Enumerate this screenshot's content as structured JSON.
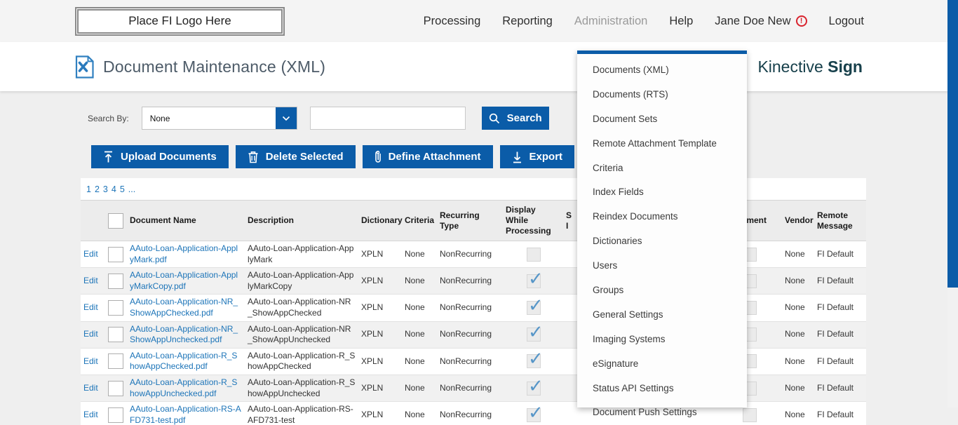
{
  "nav": {
    "logo_text": "Place FI Logo Here",
    "items": {
      "processing": "Processing",
      "reporting": "Reporting",
      "administration": "Administration",
      "help": "Help"
    },
    "user_name": "Jane Doe New",
    "user_warning_icon": "alert-circle",
    "logout": "Logout"
  },
  "header": {
    "title": "Document Maintenance (XML)",
    "title_icon": "xml-document",
    "brand_name": "Kinective",
    "brand_product": "Sign"
  },
  "search": {
    "label": "Search By:",
    "selected_option": "None",
    "input_value": "",
    "button_label": "Search",
    "button_icon": "magnifier"
  },
  "toolbar": {
    "upload_label": "Upload Documents",
    "upload_icon": "arrow-up-from-bar",
    "delete_label": "Delete Selected",
    "delete_icon": "trash",
    "attach_label": "Define Attachment",
    "attach_icon": "paperclip",
    "export_label": "Export",
    "export_icon": "arrow-down-to-bar",
    "partial_button_icon": "document-download"
  },
  "pagination": {
    "pages": [
      "1",
      "2",
      "3",
      "4",
      "5",
      "..."
    ]
  },
  "table": {
    "headers": {
      "document_name": "Document Name",
      "description": "Description",
      "dictionary": "Dictionary",
      "criteria": "Criteria",
      "recurring_type": "Recurring Type",
      "display_while_processing": "Display While Processing",
      "sign_line1": "S",
      "sign_line2": "I",
      "attachment": "Attachment",
      "vendor": "Vendor",
      "remote_message": "Remote Message"
    },
    "edit_label": "Edit",
    "rows": [
      {
        "name": "AAuto-Loan-Application-ApplyMark.pdf",
        "description": "AAuto-Loan-Application-ApplyMark",
        "dictionary": "XPLN",
        "criteria": "None",
        "recurring_type": "NonRecurring",
        "display_while_processing": false,
        "vendor": "None",
        "remote_message": "FI Default"
      },
      {
        "name": "AAuto-Loan-Application-ApplyMarkCopy.pdf",
        "description": "AAuto-Loan-Application-ApplyMarkCopy",
        "dictionary": "XPLN",
        "criteria": "None",
        "recurring_type": "NonRecurring",
        "display_while_processing": true,
        "vendor": "None",
        "remote_message": "FI Default"
      },
      {
        "name": "AAuto-Loan-Application-NR_ShowAppChecked.pdf",
        "description": "AAuto-Loan-Application-NR_ShowAppChecked",
        "dictionary": "XPLN",
        "criteria": "None",
        "recurring_type": "NonRecurring",
        "display_while_processing": true,
        "vendor": "None",
        "remote_message": "FI Default"
      },
      {
        "name": "AAuto-Loan-Application-NR_ShowAppUnchecked.pdf",
        "description": "AAuto-Loan-Application-NR_ShowAppUnchecked",
        "dictionary": "XPLN",
        "criteria": "None",
        "recurring_type": "NonRecurring",
        "display_while_processing": true,
        "vendor": "None",
        "remote_message": "FI Default"
      },
      {
        "name": "AAuto-Loan-Application-R_ShowAppChecked.pdf",
        "description": "AAuto-Loan-Application-R_ShowAppChecked",
        "dictionary": "XPLN",
        "criteria": "None",
        "recurring_type": "NonRecurring",
        "display_while_processing": true,
        "vendor": "None",
        "remote_message": "FI Default"
      },
      {
        "name": "AAuto-Loan-Application-R_ShowAppUnchecked.pdf",
        "description": "AAuto-Loan-Application-R_ShowAppUnchecked",
        "dictionary": "XPLN",
        "criteria": "None",
        "recurring_type": "NonRecurring",
        "display_while_processing": true,
        "vendor": "None",
        "remote_message": "FI Default"
      },
      {
        "name": "AAuto-Loan-Application-RS-AFD731-test.pdf",
        "description": "AAuto-Loan-Application-RS-AFD731-test",
        "dictionary": "XPLN",
        "criteria": "None",
        "recurring_type": "NonRecurring",
        "display_while_processing": true,
        "vendor": "None",
        "remote_message": "FI Default"
      }
    ]
  },
  "admin_menu": {
    "items": [
      "Documents (XML)",
      "Documents (RTS)",
      "Document Sets",
      "Remote Attachment Template",
      "Criteria",
      "Index Fields",
      "Reindex Documents",
      "Dictionaries",
      "Users",
      "Groups",
      "General Settings",
      "Imaging Systems",
      "eSignature",
      "Status API Settings",
      "Document Push Settings"
    ]
  },
  "colors": {
    "accent_blue": "#0B5CA8",
    "link_blue": "#1C74B8",
    "check_blue": "#5796C8",
    "brand_teal": "#17404B",
    "warning_red": "#D9232E"
  }
}
